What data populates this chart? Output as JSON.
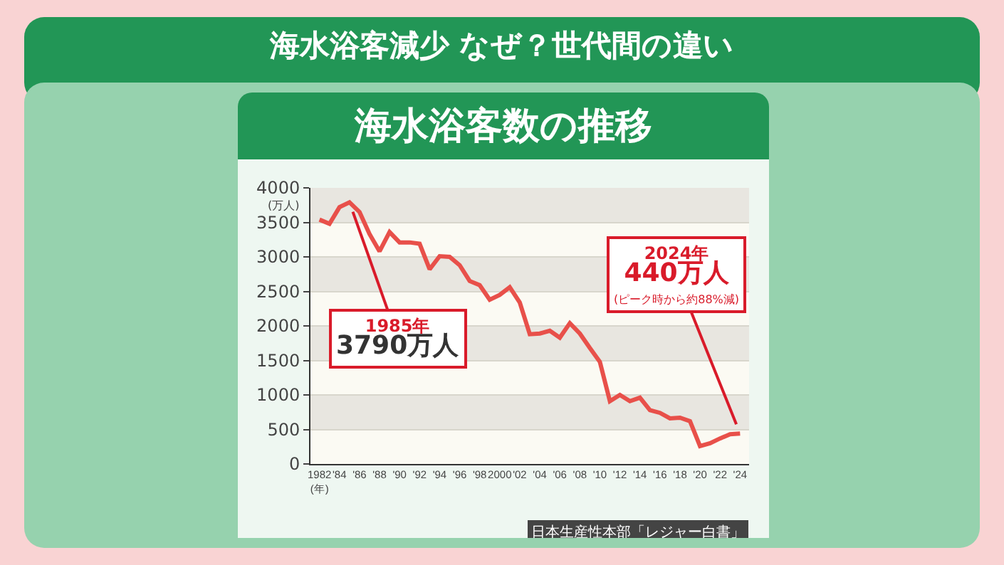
{
  "chart_data": {
    "type": "line",
    "title": "海水浴客減少 なぜ？世代間の違い",
    "subtitle": "海水浴客数の推移",
    "ylabel": "(万人)",
    "x": [
      1982,
      1983,
      1984,
      1985,
      1986,
      1987,
      1988,
      1989,
      1990,
      1991,
      1992,
      1993,
      1994,
      1995,
      1996,
      1997,
      1998,
      1999,
      2000,
      2001,
      2002,
      2003,
      2004,
      2005,
      2006,
      2007,
      2008,
      2009,
      2010,
      2011,
      2012,
      2013,
      2014,
      2015,
      2016,
      2017,
      2018,
      2019,
      2020,
      2021,
      2022,
      2023,
      2024
    ],
    "series": [
      {
        "color": "#e8504a",
        "values": [
          3540,
          3480,
          3720,
          3790,
          3650,
          3330,
          3080,
          3360,
          3210,
          3210,
          3190,
          2820,
          3010,
          3000,
          2880,
          2650,
          2590,
          2380,
          2450,
          2560,
          2340,
          1880,
          1890,
          1930,
          1830,
          2040,
          1890,
          1680,
          1480,
          910,
          1000,
          910,
          960,
          780,
          740,
          660,
          670,
          620,
          260,
          300,
          370,
          430,
          440
        ]
      }
    ],
    "xlim": [
      1981.1,
      2024.9
    ],
    "xticks": [
      {
        "value": 1982,
        "label": "1982(年)"
      },
      {
        "value": 1984,
        "label": "'84"
      },
      {
        "value": 1986,
        "label": "'86"
      },
      {
        "value": 1988,
        "label": "'88"
      },
      {
        "value": 1990,
        "label": "'90"
      },
      {
        "value": 1992,
        "label": "'92"
      },
      {
        "value": 1994,
        "label": "'94"
      },
      {
        "value": 1996,
        "label": "'96"
      },
      {
        "value": 1998,
        "label": "'98"
      },
      {
        "value": 2000,
        "label": "2000"
      },
      {
        "value": 2002,
        "label": "'02"
      },
      {
        "value": 2004,
        "label": "'04"
      },
      {
        "value": 2006,
        "label": "'06"
      },
      {
        "value": 2008,
        "label": "'08"
      },
      {
        "value": 2010,
        "label": "'10"
      },
      {
        "value": 2012,
        "label": "'12"
      },
      {
        "value": 2014,
        "label": "'14"
      },
      {
        "value": 2016,
        "label": "'16"
      },
      {
        "value": 2018,
        "label": "'18"
      },
      {
        "value": 2020,
        "label": "'20"
      },
      {
        "value": 2022,
        "label": "'22"
      },
      {
        "value": 2024,
        "label": "'24"
      }
    ],
    "ylim": [
      0,
      4000
    ],
    "yticks": [
      0,
      500,
      1000,
      1500,
      2000,
      2500,
      3000,
      3500,
      4000
    ],
    "grid": "y",
    "marker": "none",
    "line_style": "solid",
    "annotations": [
      {
        "text": "1985年\n3790万人",
        "x": 1985,
        "y": 3790
      },
      {
        "text": "2024年\n440万人\n(ピーク時から約88%減)",
        "x": 2024,
        "y": 440
      },
      "日本生産性本部「レジャー白書」"
    ]
  }
}
